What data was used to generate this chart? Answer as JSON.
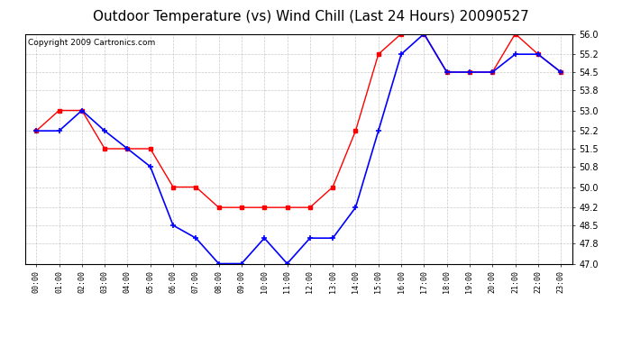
{
  "title": "Outdoor Temperature (vs) Wind Chill (Last 24 Hours) 20090527",
  "copyright": "Copyright 2009 Cartronics.com",
  "x_labels": [
    "00:00",
    "01:00",
    "02:00",
    "03:00",
    "04:00",
    "05:00",
    "06:00",
    "07:00",
    "08:00",
    "09:00",
    "10:00",
    "11:00",
    "12:00",
    "13:00",
    "14:00",
    "15:00",
    "16:00",
    "17:00",
    "18:00",
    "19:00",
    "20:00",
    "21:00",
    "22:00",
    "23:00"
  ],
  "temp_red": [
    52.2,
    53.0,
    53.0,
    51.5,
    51.5,
    51.5,
    50.0,
    50.0,
    49.2,
    49.2,
    49.2,
    49.2,
    49.2,
    50.0,
    52.2,
    55.2,
    56.0,
    56.0,
    54.5,
    54.5,
    54.5,
    56.0,
    55.2,
    54.5
  ],
  "wind_blue": [
    52.2,
    52.2,
    53.0,
    52.2,
    51.5,
    50.8,
    48.5,
    48.0,
    47.0,
    47.0,
    48.0,
    47.0,
    48.0,
    48.0,
    49.2,
    52.2,
    55.2,
    56.0,
    54.5,
    54.5,
    54.5,
    55.2,
    55.2,
    54.5
  ],
  "ylim_min": 47.0,
  "ylim_max": 56.0,
  "yticks": [
    47.0,
    47.8,
    48.5,
    49.2,
    50.0,
    50.8,
    51.5,
    52.2,
    53.0,
    53.8,
    54.5,
    55.2,
    56.0
  ],
  "red_color": "#ff0000",
  "blue_color": "#0000ff",
  "bg_color": "#ffffff",
  "plot_bg": "#ffffff",
  "grid_color": "#bbbbbb",
  "title_fontsize": 11,
  "copyright_fontsize": 6.5
}
